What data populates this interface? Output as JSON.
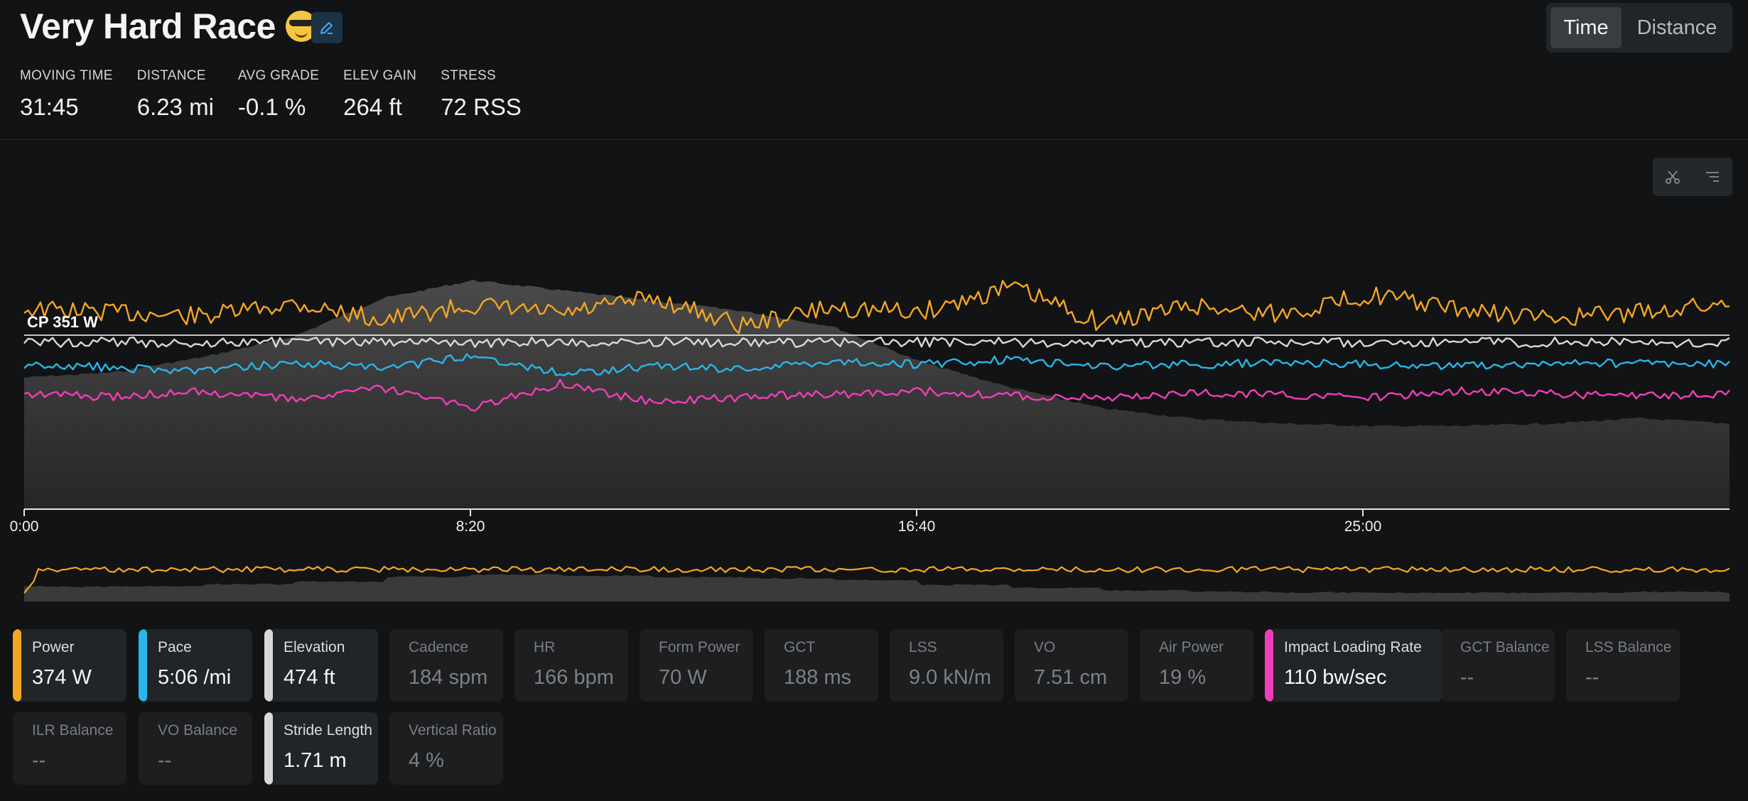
{
  "header": {
    "title": "Very Hard Race",
    "emoji": "sunglasses-smiley",
    "edit_icon": "pencil-icon"
  },
  "summary": [
    {
      "label": "MOVING TIME",
      "value": "31:45"
    },
    {
      "label": "DISTANCE",
      "value": "6.23 mi"
    },
    {
      "label": "AVG GRADE",
      "value": "-0.1 %"
    },
    {
      "label": "ELEV GAIN",
      "value": "264 ft"
    },
    {
      "label": "STRESS",
      "value": "72 RSS"
    }
  ],
  "axis_toggle": {
    "options": [
      "Time",
      "Distance"
    ],
    "selected": "Time"
  },
  "chart_tools": {
    "icons": [
      "scissors-icon",
      "list-icon"
    ]
  },
  "colors": {
    "power": "#f5a623",
    "pace": "#29b6e8",
    "elevation": "#d8d8d8",
    "impact_loading_rate": "#f03eb8",
    "elevation_fill": "#3c3c3c",
    "background": "#111315"
  },
  "chart_data": {
    "type": "line",
    "x_ticks": [
      "0:00",
      "8:20",
      "16:40",
      "25:00"
    ],
    "xlim": [
      "0:00",
      "31:45"
    ],
    "reference_line": {
      "label": "CP 351 W",
      "value": 351
    },
    "series": [
      {
        "name": "Power",
        "color": "#f5a623",
        "values": [
          375,
          372,
          368,
          380,
          365,
          378,
          370,
          385,
          360,
          376,
          372,
          395,
          362,
          378,
          370,
          388,
          374,
          366,
          372,
          380
        ]
      },
      {
        "name": "Pace",
        "color": "#29b6e8",
        "values": [
          306,
          308,
          310,
          305,
          309,
          300,
          312,
          307,
          309,
          304,
          306,
          303,
          307,
          306,
          305,
          306,
          307,
          306,
          305,
          306
        ]
      },
      {
        "name": "Elevation",
        "color": "#d8d8d8",
        "values": [
          474,
          476,
          482,
          490,
          505,
          512,
          508,
          504,
          500,
          494,
          480,
          470,
          462,
          458,
          456,
          455,
          455,
          456,
          458,
          456
        ]
      },
      {
        "name": "Impact Loading Rate",
        "color": "#f03eb8",
        "values": [
          110,
          108,
          112,
          106,
          114,
          100,
          118,
          104,
          108,
          110,
          112,
          109,
          107,
          111,
          110,
          108,
          112,
          110,
          109,
          110
        ]
      }
    ]
  },
  "metrics": [
    {
      "label": "Power",
      "value": "374 W",
      "active": true,
      "color": "#f5a623"
    },
    {
      "label": "Pace",
      "value": "5:06 /mi",
      "active": true,
      "color": "#29b6e8"
    },
    {
      "label": "Elevation",
      "value": "474 ft",
      "active": true,
      "color": "#d8d8d8"
    },
    {
      "label": "Cadence",
      "value": "184 spm",
      "active": false,
      "color": ""
    },
    {
      "label": "HR",
      "value": "166 bpm",
      "active": false,
      "color": ""
    },
    {
      "label": "Form Power",
      "value": "70 W",
      "active": false,
      "color": ""
    },
    {
      "label": "GCT",
      "value": "188 ms",
      "active": false,
      "color": ""
    },
    {
      "label": "LSS",
      "value": "9.0 kN/m",
      "active": false,
      "color": ""
    },
    {
      "label": "VO",
      "value": "7.51 cm",
      "active": false,
      "color": ""
    },
    {
      "label": "Air Power",
      "value": "19 %",
      "active": false,
      "color": ""
    },
    {
      "label": "Impact Loading Rate",
      "value": "110 bw/sec",
      "active": true,
      "color": "#f03eb8"
    },
    {
      "label": "GCT Balance",
      "value": "--",
      "active": false,
      "color": ""
    },
    {
      "label": "LSS Balance",
      "value": "--",
      "active": false,
      "color": ""
    },
    {
      "label": "ILR Balance",
      "value": "--",
      "active": false,
      "color": ""
    },
    {
      "label": "VO Balance",
      "value": "--",
      "active": false,
      "color": ""
    },
    {
      "label": "Stride Length",
      "value": "1.71 m",
      "active": true,
      "color": "#d8d8d8"
    },
    {
      "label": "Vertical Ratio",
      "value": "4 %",
      "active": false,
      "color": ""
    }
  ]
}
